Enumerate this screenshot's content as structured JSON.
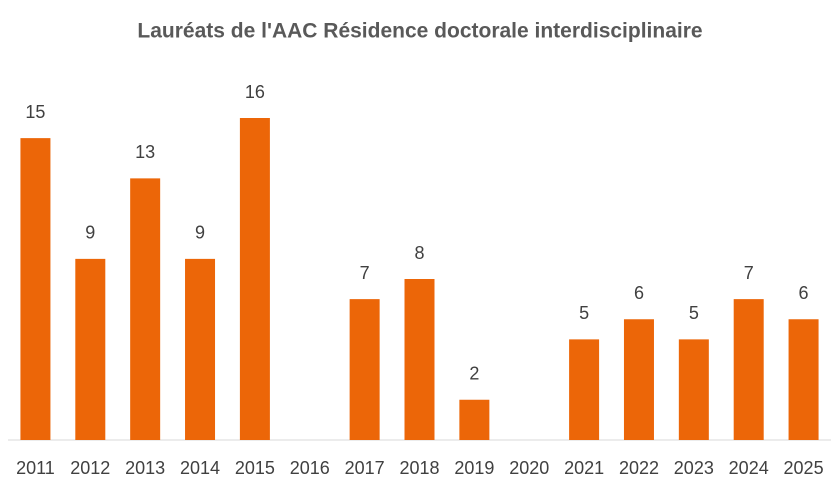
{
  "chart_data": {
    "type": "bar",
    "title": "Lauréats de l'AAC Résidence doctorale interdisciplinaire",
    "categories": [
      "2011",
      "2012",
      "2013",
      "2014",
      "2015",
      "2016",
      "2017",
      "2018",
      "2019",
      "2020",
      "2021",
      "2022",
      "2023",
      "2024",
      "2025"
    ],
    "values": [
      15,
      9,
      13,
      9,
      16,
      null,
      7,
      8,
      2,
      null,
      5,
      6,
      5,
      7,
      6
    ],
    "color": "#ec6608"
  }
}
